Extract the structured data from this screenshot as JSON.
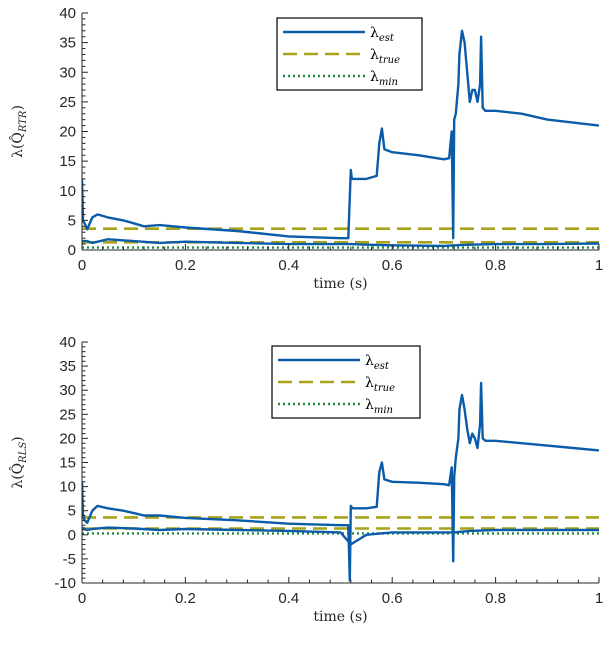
{
  "colors": {
    "est": "#0b5ca8",
    "true": "#a9a31a",
    "min": "#1f8a3c",
    "axis": "#262626"
  },
  "chart_data": [
    {
      "type": "line",
      "xlabel": "time (s)",
      "ylabel": "λ(Q̂_RTR)",
      "ylabel_main": "λ(Q̂",
      "ylabel_sub": "RTR",
      "xlim": [
        0,
        1
      ],
      "ylim": [
        0,
        40
      ],
      "xticks": [
        0,
        0.2,
        0.4,
        0.6,
        0.8,
        1
      ],
      "xtick_labels": [
        "0",
        "0.2",
        "0.4",
        "0.6",
        "0.8",
        "1"
      ],
      "yticks": [
        0,
        5,
        10,
        15,
        20,
        25,
        30,
        35,
        40
      ],
      "ytick_labels": [
        "0",
        "5",
        "10",
        "15",
        "20",
        "25",
        "30",
        "35",
        "40"
      ],
      "legend_position": "top-center",
      "series": [
        {
          "name": "λ_est",
          "sub": "est",
          "style": "solid",
          "color_key": "est",
          "x": [
            0,
            0.002,
            0.005,
            0.01,
            0.02,
            0.03,
            0.05,
            0.08,
            0.1,
            0.12,
            0.15,
            0.2,
            0.3,
            0.4,
            0.5,
            0.515,
            0.52,
            0.522,
            0.53,
            0.55,
            0.57,
            0.575,
            0.58,
            0.585,
            0.6,
            0.65,
            0.7,
            0.71,
            0.715,
            0.718,
            0.72,
            0.723,
            0.728,
            0.73,
            0.735,
            0.74,
            0.745,
            0.75,
            0.755,
            0.76,
            0.765,
            0.77,
            0.772,
            0.775,
            0.78,
            0.8,
            0.85,
            0.9,
            0.95,
            1.0
          ],
          "y": [
            12,
            5,
            4.5,
            3.5,
            5.5,
            6.0,
            5.5,
            5.0,
            4.5,
            4.0,
            4.2,
            3.8,
            3.2,
            2.3,
            2.0,
            2.0,
            13.5,
            12,
            12,
            12,
            12.5,
            18,
            20.5,
            17,
            16.5,
            16,
            15.3,
            15.5,
            20,
            2,
            22,
            23,
            28,
            33,
            37,
            35,
            30,
            25,
            27,
            27,
            25,
            28,
            36,
            24,
            23.5,
            23.5,
            23,
            22,
            21.5,
            21
          ]
        },
        {
          "name": "λ_est (lower branch)",
          "sub": "est",
          "style": "solid",
          "color_key": "est",
          "in_legend": false,
          "x": [
            0,
            0.01,
            0.02,
            0.05,
            0.1,
            0.15,
            0.2,
            0.3,
            0.4,
            0.5,
            0.52,
            0.55,
            0.6,
            0.7,
            0.72,
            0.75,
            0.8,
            0.9,
            1.0
          ],
          "y": [
            1.5,
            1.5,
            1.2,
            1.8,
            1.5,
            1.2,
            1.4,
            1.2,
            1.0,
            1.0,
            1.0,
            0.9,
            0.8,
            0.7,
            0.8,
            0.9,
            1.0,
            1.0,
            1.1
          ]
        },
        {
          "name": "λ_true",
          "sub": "true",
          "style": "dashed",
          "color_key": "true",
          "x": [
            0,
            1
          ],
          "y": [
            3.6,
            3.6
          ]
        },
        {
          "name": "λ_true (lower)",
          "sub": "true",
          "style": "dashed",
          "color_key": "true",
          "in_legend": false,
          "x": [
            0,
            1
          ],
          "y": [
            1.3,
            1.3
          ]
        },
        {
          "name": "λ_min",
          "sub": "min",
          "style": "dotted",
          "color_key": "min",
          "x": [
            0,
            1
          ],
          "y": [
            0.4,
            0.4
          ]
        }
      ]
    },
    {
      "type": "line",
      "xlabel": "time (s)",
      "ylabel": "λ(Q̂_RLS)",
      "ylabel_main": "λ(Q̂",
      "ylabel_sub": "RLS",
      "xlim": [
        0,
        1
      ],
      "ylim": [
        -10,
        40
      ],
      "xticks": [
        0,
        0.2,
        0.4,
        0.6,
        0.8,
        1
      ],
      "xtick_labels": [
        "0",
        "0.2",
        "0.4",
        "0.6",
        "0.8",
        "1"
      ],
      "yticks": [
        -10,
        -5,
        0,
        5,
        10,
        15,
        20,
        25,
        30,
        35,
        40
      ],
      "ytick_labels": [
        "-10",
        "-5",
        "0",
        "5",
        "10",
        "15",
        "20",
        "25",
        "30",
        "35",
        "40"
      ],
      "legend_position": "top-center",
      "series": [
        {
          "name": "λ_est",
          "sub": "est",
          "style": "solid",
          "color_key": "est",
          "x": [
            0,
            0.002,
            0.005,
            0.01,
            0.02,
            0.03,
            0.05,
            0.08,
            0.1,
            0.12,
            0.15,
            0.2,
            0.3,
            0.4,
            0.5,
            0.515,
            0.518,
            0.52,
            0.523,
            0.53,
            0.55,
            0.57,
            0.575,
            0.58,
            0.585,
            0.6,
            0.65,
            0.7,
            0.71,
            0.715,
            0.718,
            0.72,
            0.723,
            0.728,
            0.73,
            0.735,
            0.74,
            0.745,
            0.75,
            0.755,
            0.76,
            0.765,
            0.77,
            0.772,
            0.775,
            0.78,
            0.8,
            0.85,
            0.9,
            0.95,
            1.0
          ],
          "y": [
            11,
            4,
            3,
            2.5,
            5,
            6.0,
            5.5,
            5.0,
            4.5,
            4.0,
            4.0,
            3.5,
            3.0,
            2.3,
            2.0,
            2.0,
            -9.5,
            6,
            5.5,
            5.5,
            5.5,
            5.8,
            13,
            15,
            11.5,
            11.0,
            10.8,
            10.5,
            10.3,
            14.0,
            -5.5,
            12,
            16,
            20,
            26,
            29,
            26,
            22,
            19,
            21,
            20,
            18,
            23,
            31.5,
            20,
            19.5,
            19.5,
            19,
            18.5,
            18,
            17.5
          ]
        },
        {
          "name": "λ_est (lower branch)",
          "sub": "est",
          "style": "solid",
          "color_key": "est",
          "in_legend": false,
          "x": [
            0,
            0.01,
            0.02,
            0.05,
            0.1,
            0.15,
            0.2,
            0.3,
            0.4,
            0.5,
            0.52,
            0.55,
            0.6,
            0.7,
            0.72,
            0.75,
            0.8,
            0.9,
            1.0
          ],
          "y": [
            1.5,
            1.0,
            1.2,
            1.5,
            1.3,
            1.0,
            1.2,
            1.0,
            0.8,
            0.5,
            -2.0,
            0.0,
            0.5,
            0.5,
            0.5,
            0.8,
            1.0,
            1.0,
            1.0
          ]
        },
        {
          "name": "λ_true",
          "sub": "true",
          "style": "dashed",
          "color_key": "true",
          "x": [
            0,
            1
          ],
          "y": [
            3.6,
            3.6
          ]
        },
        {
          "name": "λ_true (lower)",
          "sub": "true",
          "style": "dashed",
          "color_key": "true",
          "in_legend": false,
          "x": [
            0,
            1
          ],
          "y": [
            1.3,
            1.3
          ]
        },
        {
          "name": "λ_min",
          "sub": "min",
          "style": "dotted",
          "color_key": "min",
          "x": [
            0,
            1
          ],
          "y": [
            0.3,
            0.3
          ]
        }
      ]
    }
  ]
}
